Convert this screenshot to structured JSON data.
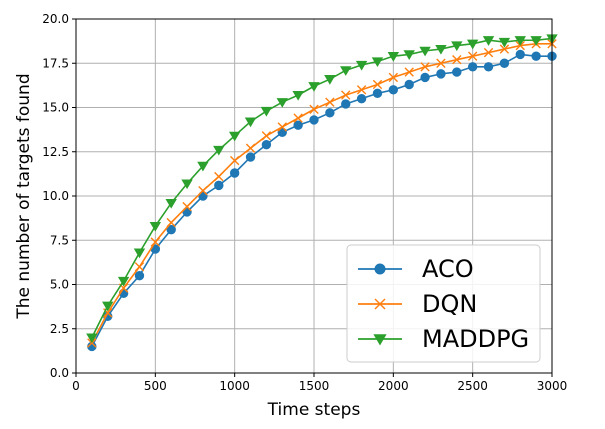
{
  "chart_data": {
    "type": "line",
    "title": "",
    "xlabel": "Time steps",
    "ylabel": "The number of targets found",
    "xlim": [
      0,
      3000
    ],
    "ylim": [
      0,
      20
    ],
    "xticks": [
      0,
      500,
      1000,
      1500,
      2000,
      2500,
      3000
    ],
    "yticks": [
      0.0,
      2.5,
      5.0,
      7.5,
      10.0,
      12.5,
      15.0,
      17.5,
      20.0
    ],
    "xtick_labels": [
      "0",
      "500",
      "1000",
      "1500",
      "2000",
      "2500",
      "3000"
    ],
    "ytick_labels": [
      "0.0",
      "2.5",
      "5.0",
      "7.5",
      "10.0",
      "12.5",
      "15.0",
      "17.5",
      "20.0"
    ],
    "grid": true,
    "legend_position": "bottom-right",
    "x": [
      100,
      200,
      300,
      400,
      500,
      600,
      700,
      800,
      900,
      1000,
      1100,
      1200,
      1300,
      1400,
      1500,
      1600,
      1700,
      1800,
      1900,
      2000,
      2100,
      2200,
      2300,
      2400,
      2500,
      2600,
      2700,
      2800,
      2900,
      3000
    ],
    "series": [
      {
        "name": "ACO",
        "color": "#1f77b4",
        "marker": "circle",
        "values": [
          1.5,
          3.2,
          4.5,
          5.5,
          7.0,
          8.1,
          9.1,
          10.0,
          10.6,
          11.3,
          12.2,
          12.9,
          13.6,
          14.0,
          14.3,
          14.7,
          15.2,
          15.5,
          15.8,
          16.0,
          16.3,
          16.7,
          16.9,
          17.0,
          17.3,
          17.3,
          17.5,
          18.0,
          17.9,
          17.9
        ]
      },
      {
        "name": "DQN",
        "color": "#ff7f0e",
        "marker": "x",
        "values": [
          1.7,
          3.4,
          4.8,
          6.0,
          7.4,
          8.5,
          9.4,
          10.3,
          11.1,
          12.0,
          12.7,
          13.4,
          13.9,
          14.4,
          14.9,
          15.3,
          15.7,
          16.0,
          16.3,
          16.7,
          17.0,
          17.3,
          17.5,
          17.7,
          17.9,
          18.1,
          18.3,
          18.5,
          18.6,
          18.6
        ]
      },
      {
        "name": "MADDPG",
        "color": "#2ca02c",
        "marker": "triangle-down",
        "values": [
          2.0,
          3.8,
          5.2,
          6.8,
          8.3,
          9.6,
          10.7,
          11.7,
          12.6,
          13.4,
          14.2,
          14.8,
          15.3,
          15.7,
          16.2,
          16.6,
          17.1,
          17.4,
          17.6,
          17.9,
          18.0,
          18.2,
          18.3,
          18.5,
          18.6,
          18.8,
          18.7,
          18.8,
          18.8,
          18.9
        ]
      }
    ]
  }
}
